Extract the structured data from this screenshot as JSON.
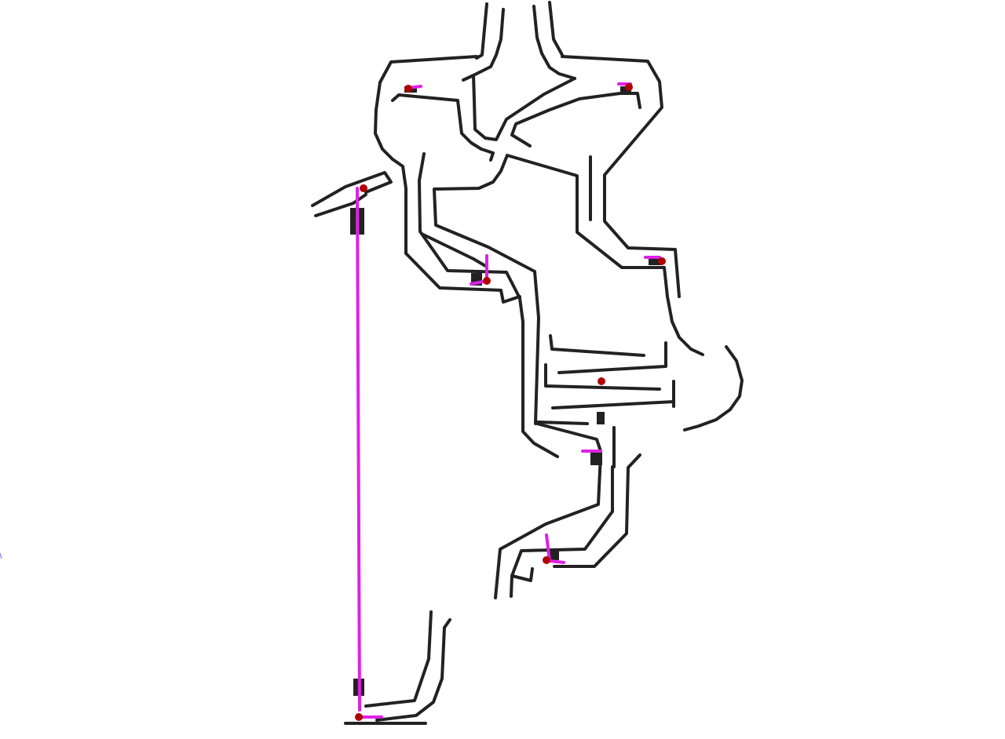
{
  "map": {
    "wall_color": "#222222",
    "path_color": "#e020e6",
    "marker_color": "#b00000",
    "background_color": "#ffffff",
    "marker_count": 10,
    "connector_count": 9
  }
}
